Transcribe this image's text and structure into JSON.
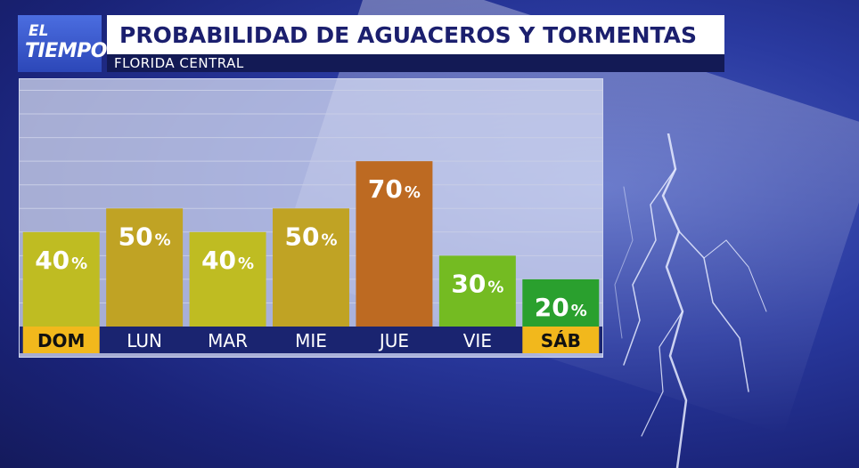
{
  "logo": {
    "line1": "EL",
    "line2": "TIEMPO"
  },
  "header": {
    "title": "PROBABILIDAD DE AGUACEROS Y TORMENTAS",
    "subtitle": "FLORIDA CENTRAL"
  },
  "chart_data": {
    "type": "bar",
    "categories": [
      "DOM",
      "LUN",
      "MAR",
      "MIE",
      "JUE",
      "VIE",
      "SÁB"
    ],
    "values": [
      40,
      50,
      40,
      50,
      70,
      30,
      20
    ],
    "value_suffix": "%",
    "ylim": [
      0,
      100
    ],
    "grid": true,
    "bar_colors": [
      "#bfbc22",
      "#c0a324",
      "#bfbc22",
      "#c0a324",
      "#bd6a22",
      "#74bb22",
      "#2aa02e"
    ],
    "highlighted_categories": [
      "DOM",
      "SÁB"
    ],
    "highlight_color": "#f2b81c",
    "label_bar_color": "#1a2470"
  }
}
